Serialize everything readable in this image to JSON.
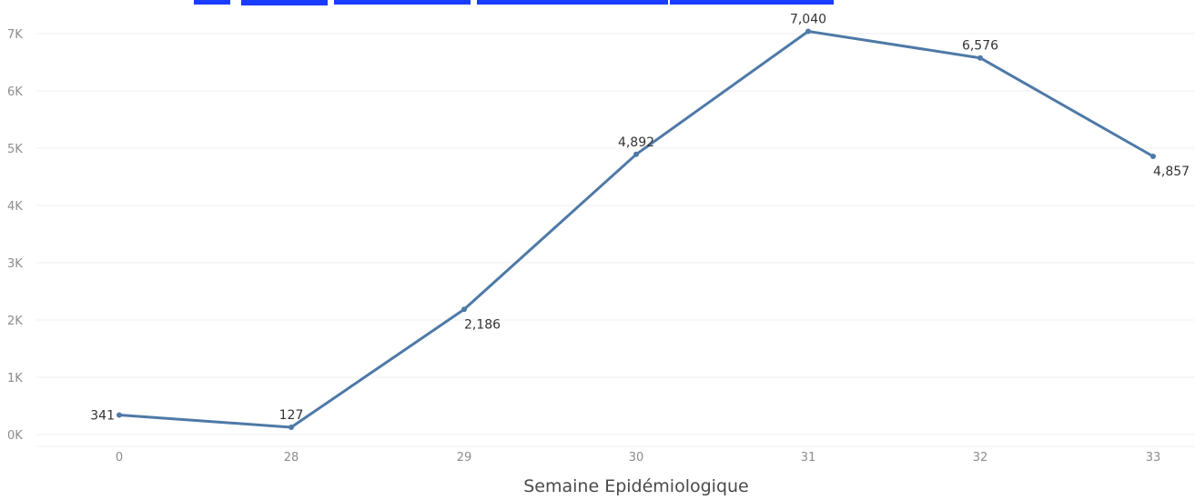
{
  "chart_data": {
    "type": "line",
    "title": "",
    "xlabel": "Semaine Epidémiologique",
    "ylabel": "",
    "categories": [
      "0",
      "28",
      "29",
      "30",
      "31",
      "32",
      "33"
    ],
    "values": [
      341,
      127,
      2186,
      4892,
      7040,
      6576,
      4857
    ],
    "data_labels": [
      "341",
      "127",
      "2,186",
      "4,892",
      "7,040",
      "6,576",
      "4,857"
    ],
    "label_position": [
      "left",
      "above",
      "below",
      "above",
      "above",
      "above",
      "below"
    ],
    "yticks": [
      0,
      1000,
      2000,
      3000,
      4000,
      5000,
      6000,
      7000
    ],
    "ytick_labels": [
      "0K",
      "1K",
      "2K",
      "3K",
      "4K",
      "5K",
      "6K",
      "7K"
    ],
    "ylim": [
      0,
      7000
    ],
    "grid": true,
    "colors": {
      "line": "#4e79a7",
      "grid": "#efefef",
      "top_strip": "#1a3cff"
    }
  }
}
